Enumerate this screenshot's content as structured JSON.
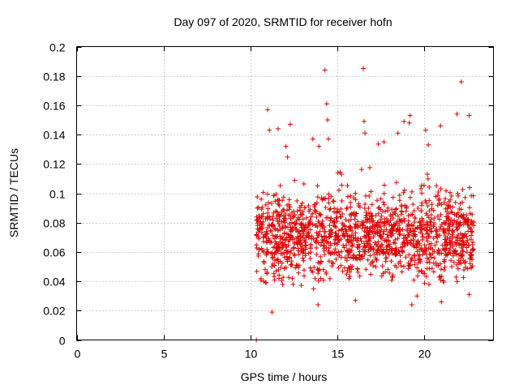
{
  "chart_data": {
    "type": "scatter",
    "title": "Day 097 of 2020, SRMTID for receiver hofn",
    "xlabel": "GPS time / hours",
    "ylabel": "SRMTID / TECUs",
    "xlim": [
      0,
      24
    ],
    "ylim": [
      0,
      0.2
    ],
    "x_ticks": [
      "0",
      "5",
      "10",
      "15",
      "20"
    ],
    "y_ticks": [
      "0",
      "0.02",
      "0.04",
      "0.06",
      "0.08",
      "0.1",
      "0.12",
      "0.14",
      "0.16",
      "0.18",
      "0.2"
    ],
    "grid": true,
    "marker": "+",
    "color": "#e00000",
    "data_span_hours": [
      10.3,
      22.9
    ],
    "typical_range": [
      0.03,
      0.11
    ],
    "series": [
      {
        "name": "SRMTID",
        "points": [
          [
            10.35,
            0.0
          ],
          [
            11.0,
            0.157
          ],
          [
            11.1,
            0.143
          ],
          [
            11.25,
            0.019
          ],
          [
            11.6,
            0.144
          ],
          [
            12.3,
            0.147
          ],
          [
            12.05,
            0.132
          ],
          [
            13.6,
            0.137
          ],
          [
            13.95,
            0.132
          ],
          [
            14.3,
            0.184
          ],
          [
            14.4,
            0.161
          ],
          [
            14.45,
            0.15
          ],
          [
            14.5,
            0.137
          ],
          [
            16.5,
            0.185
          ],
          [
            16.55,
            0.149
          ],
          [
            16.6,
            0.141
          ],
          [
            17.7,
            0.135
          ],
          [
            18.5,
            0.141
          ],
          [
            18.85,
            0.149
          ],
          [
            19.2,
            0.153
          ],
          [
            19.15,
            0.148
          ],
          [
            19.3,
            0.024
          ],
          [
            20.1,
            0.143
          ],
          [
            20.25,
            0.133
          ],
          [
            20.95,
            0.146
          ],
          [
            21.9,
            0.154
          ],
          [
            22.15,
            0.176
          ],
          [
            22.6,
            0.153
          ],
          [
            22.6,
            0.031
          ],
          [
            21.0,
            0.026
          ],
          [
            19.6,
            0.03
          ],
          [
            16.05,
            0.027
          ],
          [
            13.9,
            0.024
          ]
        ]
      }
    ]
  }
}
